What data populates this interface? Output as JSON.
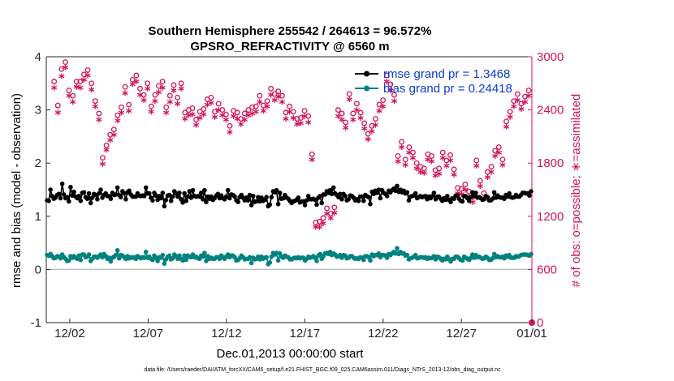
{
  "chart_data": {
    "type": "line",
    "title": "Southern Hemisphere 255542 / 264613 = 96.572%",
    "subtitle": "GPSRO_REFRACTIVITY @ 6560 m",
    "xlabel": "Dec.01,2013 00:00:00 start",
    "ylabel_left": "rmse and bias (model - observation)",
    "ylabel_right": "# of obs: o=possible; ∗=assimilated",
    "xlim": [
      0,
      31
    ],
    "ylim_left": [
      -1,
      4
    ],
    "ylim_right": [
      0,
      3000
    ],
    "x_ticks": [
      {
        "value": 1.5,
        "label": "12/02"
      },
      {
        "value": 6.5,
        "label": "12/07"
      },
      {
        "value": 11.5,
        "label": "12/12"
      },
      {
        "value": 16.5,
        "label": "12/17"
      },
      {
        "value": 21.5,
        "label": "12/22"
      },
      {
        "value": 26.5,
        "label": "12/27"
      },
      {
        "value": 31,
        "label": "01/01"
      }
    ],
    "y_ticks_left": [
      "-1",
      "0",
      "1",
      "2",
      "3",
      "4"
    ],
    "y_ticks_right": [
      "0",
      "600",
      "1200",
      "1800",
      "2400",
      "3000"
    ],
    "grid": true,
    "legend_position": "top-right",
    "colors": {
      "rmse": "#000000",
      "bias": "#00827f",
      "obs": "#d6125a",
      "legend_text": "#0b3bd6"
    },
    "footer": "data file: /Users/raeder/DAI/ATM_forcXX/CAM6_setup/f.e21.FHIST_BGC.f09_025.CAM6assim.011/Diags_NTrS_2013-12/obs_diag_output.nc",
    "series": [
      {
        "name": "rmse grand pr = 1.3468",
        "axis": "left",
        "values": [
          1.3,
          1.29,
          1.5,
          1.38,
          1.33,
          1.35,
          1.4,
          1.42,
          1.34,
          1.61,
          1.41,
          1.34,
          1.36,
          1.28,
          1.55,
          1.39,
          1.46,
          1.37,
          1.34,
          1.38,
          1.29,
          1.44,
          1.45,
          1.36,
          1.33,
          1.43,
          1.25,
          1.35,
          1.42,
          1.4,
          1.32,
          1.43,
          1.5,
          1.35,
          1.4,
          1.43,
          1.38,
          1.38,
          1.33,
          1.44,
          1.4,
          1.41,
          1.54,
          1.4,
          1.36,
          1.47,
          1.43,
          1.32,
          1.45,
          1.48,
          1.41,
          1.37,
          1.37,
          1.37,
          1.43,
          1.39,
          1.38,
          1.39,
          1.38,
          1.54,
          1.43,
          1.43,
          1.35,
          1.3,
          1.44,
          1.39,
          1.31,
          1.38,
          1.34,
          1.44,
          1.19,
          1.31,
          1.39,
          1.4,
          1.29,
          1.37,
          1.47,
          1.43,
          1.37,
          1.44,
          1.32,
          1.26,
          1.43,
          1.29,
          1.37,
          1.47,
          1.35,
          1.49,
          1.38,
          1.37,
          1.38,
          1.37,
          1.44,
          1.32,
          1.49,
          1.27,
          1.37,
          1.33,
          1.37,
          1.31,
          1.34,
          1.39,
          1.42,
          1.34,
          1.39,
          1.34,
          1.32,
          1.37,
          1.49,
          1.34,
          1.41,
          1.4,
          1.37,
          1.3,
          1.27,
          1.36,
          1.4,
          1.35,
          1.3,
          1.35,
          1.3,
          1.4,
          1.21,
          1.38,
          1.27,
          1.28,
          1.36,
          1.28,
          1.35,
          1.29,
          1.31,
          1.36,
          1.19,
          1.22,
          1.36,
          1.47,
          1.45,
          1.49,
          1.23,
          1.44,
          1.33,
          1.34,
          1.4,
          1.35,
          1.33,
          1.29,
          1.25,
          1.28,
          1.29,
          1.31,
          1.35,
          1.26,
          1.28,
          1.28,
          1.21,
          1.3,
          1.38,
          1.32,
          1.32,
          1.33,
          1.31,
          1.22,
          1.35,
          1.38,
          1.25,
          1.41,
          1.41,
          1.47,
          1.44,
          1.49,
          1.42,
          1.54,
          1.43,
          1.4,
          1.36,
          1.42,
          1.32,
          1.42,
          1.38,
          1.3,
          1.32,
          1.39,
          1.38,
          1.35,
          1.3,
          1.32,
          1.29,
          1.37,
          1.37,
          1.29,
          1.4,
          1.38,
          1.36,
          1.23,
          1.46,
          1.42,
          1.48,
          1.44,
          1.5,
          1.34,
          1.49,
          1.44,
          1.42,
          1.38,
          1.48,
          1.45,
          1.49,
          1.52,
          1.48,
          1.57,
          1.46,
          1.5,
          1.45,
          1.48,
          1.43,
          1.45,
          1.3,
          1.37,
          1.38,
          1.39,
          1.43,
          1.34,
          1.36,
          1.38,
          1.36,
          1.37,
          1.38,
          1.32,
          1.37,
          1.34,
          1.38,
          1.44,
          1.32,
          1.37,
          1.37,
          1.33,
          1.29,
          1.34,
          1.31,
          1.38,
          1.31,
          1.27,
          1.34,
          1.33,
          1.39,
          1.39,
          1.33,
          1.29,
          1.28,
          1.38,
          1.38,
          1.34,
          1.29,
          1.36,
          1.45,
          1.38,
          1.44,
          1.35,
          1.36,
          1.34,
          1.31,
          1.32,
          1.38,
          1.36,
          1.3,
          1.3,
          1.33,
          1.45,
          1.35,
          1.39,
          1.36,
          1.35,
          1.35,
          1.33,
          1.4,
          1.37,
          1.43,
          1.36,
          1.35,
          1.36,
          1.4,
          1.37,
          1.37,
          1.4,
          1.44,
          1.44,
          1.43,
          1.43,
          1.39,
          1.47
        ]
      },
      {
        "name": "bias grand pr = 0.24418",
        "axis": "left",
        "values": [
          0.27,
          0.26,
          0.29,
          0.25,
          0.21,
          0.22,
          0.25,
          0.24,
          0.21,
          0.28,
          0.23,
          0.2,
          0.16,
          0.17,
          0.25,
          0.22,
          0.25,
          0.22,
          0.2,
          0.26,
          0.18,
          0.28,
          0.28,
          0.23,
          0.24,
          0.28,
          0.16,
          0.2,
          0.24,
          0.24,
          0.22,
          0.25,
          0.28,
          0.23,
          0.29,
          0.25,
          0.2,
          0.22,
          0.15,
          0.22,
          0.24,
          0.27,
          0.36,
          0.21,
          0.27,
          0.26,
          0.23,
          0.2,
          0.25,
          0.21,
          0.23,
          0.22,
          0.23,
          0.2,
          0.25,
          0.23,
          0.21,
          0.23,
          0.22,
          0.33,
          0.22,
          0.24,
          0.2,
          0.18,
          0.26,
          0.22,
          0.16,
          0.23,
          0.22,
          0.27,
          0.11,
          0.19,
          0.24,
          0.26,
          0.19,
          0.21,
          0.28,
          0.25,
          0.2,
          0.26,
          0.2,
          0.17,
          0.26,
          0.18,
          0.26,
          0.24,
          0.23,
          0.28,
          0.23,
          0.24,
          0.21,
          0.2,
          0.26,
          0.24,
          0.31,
          0.16,
          0.25,
          0.2,
          0.22,
          0.2,
          0.2,
          0.23,
          0.23,
          0.2,
          0.26,
          0.23,
          0.2,
          0.24,
          0.28,
          0.23,
          0.26,
          0.26,
          0.23,
          0.17,
          0.18,
          0.21,
          0.26,
          0.23,
          0.19,
          0.2,
          0.2,
          0.23,
          0.12,
          0.22,
          0.19,
          0.2,
          0.24,
          0.19,
          0.24,
          0.2,
          0.22,
          0.23,
          0.1,
          0.13,
          0.24,
          0.31,
          0.28,
          0.31,
          0.17,
          0.3,
          0.24,
          0.22,
          0.26,
          0.24,
          0.23,
          0.19,
          0.19,
          0.21,
          0.22,
          0.21,
          0.23,
          0.21,
          0.22,
          0.22,
          0.17,
          0.2,
          0.24,
          0.22,
          0.23,
          0.25,
          0.22,
          0.16,
          0.26,
          0.29,
          0.2,
          0.25,
          0.3,
          0.31,
          0.29,
          0.33,
          0.27,
          0.3,
          0.28,
          0.24,
          0.25,
          0.27,
          0.22,
          0.27,
          0.26,
          0.21,
          0.22,
          0.25,
          0.25,
          0.22,
          0.2,
          0.21,
          0.2,
          0.23,
          0.22,
          0.18,
          0.25,
          0.25,
          0.23,
          0.17,
          0.28,
          0.25,
          0.27,
          0.27,
          0.3,
          0.23,
          0.27,
          0.27,
          0.26,
          0.22,
          0.29,
          0.27,
          0.3,
          0.33,
          0.3,
          0.4,
          0.29,
          0.33,
          0.3,
          0.3,
          0.26,
          0.27,
          0.19,
          0.21,
          0.22,
          0.24,
          0.27,
          0.21,
          0.22,
          0.23,
          0.23,
          0.22,
          0.23,
          0.2,
          0.22,
          0.21,
          0.22,
          0.25,
          0.19,
          0.24,
          0.23,
          0.2,
          0.17,
          0.2,
          0.19,
          0.24,
          0.19,
          0.15,
          0.2,
          0.2,
          0.24,
          0.24,
          0.21,
          0.18,
          0.17,
          0.24,
          0.22,
          0.2,
          0.18,
          0.22,
          0.28,
          0.22,
          0.27,
          0.23,
          0.24,
          0.22,
          0.2,
          0.21,
          0.24,
          0.22,
          0.18,
          0.18,
          0.21,
          0.29,
          0.23,
          0.25,
          0.23,
          0.23,
          0.24,
          0.21,
          0.26,
          0.24,
          0.27,
          0.22,
          0.22,
          0.22,
          0.25,
          0.24,
          0.25,
          0.27,
          0.28,
          0.28,
          0.28,
          0.27,
          0.26,
          0.29
        ]
      },
      {
        "name": "possible",
        "axis": "right",
        "marker": "o",
        "values": [
          2720,
          2450,
          2860,
          2940,
          2620,
          2560,
          2720,
          2720,
          2800,
          2850,
          2700,
          2500,
          2360,
          1860,
          2000,
          2120,
          2180,
          2340,
          2430,
          2660,
          2460,
          2740,
          2790,
          2640,
          2570,
          2700,
          2440,
          2570,
          2670,
          2720,
          2430,
          2560,
          2680,
          2540,
          2700,
          2370,
          2400,
          2420,
          2290,
          2380,
          2410,
          2520,
          2540,
          2380,
          2470,
          2400,
          2350,
          2220,
          2390,
          2370,
          2300,
          2360,
          2400,
          2430,
          2440,
          2560,
          2450,
          2500,
          2640,
          2580,
          2610,
          2560,
          2370,
          2440,
          2380,
          2300,
          2310,
          2390,
          2330,
          1900,
          1130,
          1140,
          1180,
          1290,
          1230,
          1300,
          2400,
          2360,
          2260,
          2580,
          2360,
          2470,
          2370,
          2250,
          2130,
          2220,
          2300,
          2460,
          2510,
          2790,
          2690,
          2570,
          1880,
          2040,
          1840,
          1980,
          1920,
          1800,
          1760,
          1740,
          1900,
          1880,
          1720,
          1740,
          1920,
          1830,
          1890,
          1730,
          1520,
          1510,
          1560,
          1480,
          1420,
          1830,
          1600,
          1460,
          1700,
          1760,
          1940,
          1980,
          1840,
          2270,
          2380,
          2500,
          2580,
          2470,
          2550,
          2620
        ]
      },
      {
        "name": "assimilated",
        "axis": "right",
        "marker": "*",
        "values": [
          2650,
          2370,
          2780,
          2880,
          2560,
          2490,
          2660,
          2650,
          2740,
          2790,
          2630,
          2440,
          2290,
          1790,
          1950,
          2060,
          2120,
          2280,
          2370,
          2590,
          2390,
          2690,
          2720,
          2570,
          2510,
          2640,
          2380,
          2500,
          2600,
          2650,
          2370,
          2490,
          2620,
          2470,
          2640,
          2300,
          2340,
          2350,
          2230,
          2310,
          2350,
          2460,
          2480,
          2320,
          2400,
          2340,
          2290,
          2150,
          2330,
          2300,
          2240,
          2290,
          2340,
          2360,
          2380,
          2490,
          2390,
          2440,
          2570,
          2510,
          2550,
          2490,
          2300,
          2380,
          2310,
          2240,
          2250,
          2330,
          2260,
          1840,
          1080,
          1080,
          1120,
          1230,
          1180,
          1240,
          2330,
          2290,
          2200,
          2520,
          2290,
          2400,
          2310,
          2190,
          2070,
          2160,
          2230,
          2390,
          2440,
          2720,
          2620,
          2500,
          1820,
          1980,
          1780,
          1920,
          1860,
          1740,
          1700,
          1690,
          1840,
          1820,
          1660,
          1680,
          1860,
          1770,
          1830,
          1670,
          1460,
          1450,
          1500,
          1420,
          1360,
          1770,
          1540,
          1400,
          1640,
          1700,
          1880,
          1920,
          1780,
          2210,
          2320,
          2440,
          2510,
          2410,
          2490,
          2560
        ]
      }
    ]
  }
}
